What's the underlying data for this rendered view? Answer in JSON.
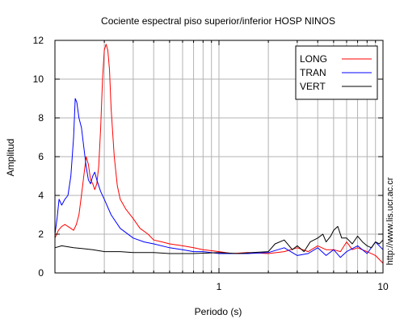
{
  "chart_data": {
    "type": "line",
    "title": "Cociente espectral piso superior/inferior  HOSP NINOS",
    "xlabel": "Periodo (s)",
    "ylabel": "Amplitud",
    "x_scale": "log",
    "xlim": [
      0.1,
      10
    ],
    "ylim": [
      0,
      12
    ],
    "x_ticks": [
      {
        "value": 1,
        "label": "1"
      },
      {
        "value": 10,
        "label": "10"
      }
    ],
    "y_ticks": [
      0,
      2,
      4,
      6,
      8,
      10,
      12
    ],
    "grid": true,
    "legend_position": "top-right",
    "series": [
      {
        "name": "LONG",
        "color": "#ff0000",
        "points": [
          [
            0.1,
            1.8
          ],
          [
            0.105,
            2.2
          ],
          [
            0.11,
            2.4
          ],
          [
            0.115,
            2.5
          ],
          [
            0.12,
            2.4
          ],
          [
            0.125,
            2.3
          ],
          [
            0.13,
            2.2
          ],
          [
            0.135,
            2.5
          ],
          [
            0.14,
            3.0
          ],
          [
            0.145,
            4.0
          ],
          [
            0.15,
            5.0
          ],
          [
            0.155,
            6.0
          ],
          [
            0.16,
            5.6
          ],
          [
            0.165,
            4.8
          ],
          [
            0.17,
            4.6
          ],
          [
            0.175,
            4.3
          ],
          [
            0.18,
            4.6
          ],
          [
            0.185,
            5.5
          ],
          [
            0.19,
            7.5
          ],
          [
            0.195,
            10.0
          ],
          [
            0.2,
            11.5
          ],
          [
            0.205,
            11.8
          ],
          [
            0.21,
            11.5
          ],
          [
            0.215,
            10.5
          ],
          [
            0.22,
            8.5
          ],
          [
            0.23,
            6.0
          ],
          [
            0.24,
            4.5
          ],
          [
            0.25,
            3.8
          ],
          [
            0.27,
            3.3
          ],
          [
            0.3,
            2.8
          ],
          [
            0.33,
            2.3
          ],
          [
            0.37,
            2.0
          ],
          [
            0.4,
            1.7
          ],
          [
            0.45,
            1.6
          ],
          [
            0.5,
            1.5
          ],
          [
            0.6,
            1.4
          ],
          [
            0.7,
            1.3
          ],
          [
            0.8,
            1.2
          ],
          [
            1.0,
            1.1
          ],
          [
            1.2,
            1.0
          ],
          [
            1.5,
            1.05
          ],
          [
            2.0,
            1.0
          ],
          [
            2.5,
            1.1
          ],
          [
            3.0,
            1.3
          ],
          [
            3.5,
            1.1
          ],
          [
            4.0,
            1.4
          ],
          [
            4.5,
            1.2
          ],
          [
            5.0,
            1.2
          ],
          [
            5.5,
            1.1
          ],
          [
            6.0,
            1.6
          ],
          [
            6.5,
            1.2
          ],
          [
            7.0,
            1.3
          ],
          [
            8.0,
            1.1
          ],
          [
            9.0,
            0.9
          ],
          [
            10.0,
            0.5
          ]
        ]
      },
      {
        "name": "TRAN",
        "color": "#0000ff",
        "points": [
          [
            0.1,
            2.0
          ],
          [
            0.103,
            2.8
          ],
          [
            0.106,
            3.8
          ],
          [
            0.11,
            3.5
          ],
          [
            0.115,
            3.8
          ],
          [
            0.12,
            4.0
          ],
          [
            0.125,
            5.0
          ],
          [
            0.13,
            7.0
          ],
          [
            0.133,
            9.0
          ],
          [
            0.136,
            8.8
          ],
          [
            0.14,
            8.0
          ],
          [
            0.145,
            7.5
          ],
          [
            0.15,
            6.5
          ],
          [
            0.155,
            5.5
          ],
          [
            0.16,
            4.8
          ],
          [
            0.165,
            4.6
          ],
          [
            0.17,
            5.0
          ],
          [
            0.175,
            5.2
          ],
          [
            0.18,
            4.8
          ],
          [
            0.19,
            4.2
          ],
          [
            0.2,
            3.8
          ],
          [
            0.22,
            3.0
          ],
          [
            0.25,
            2.3
          ],
          [
            0.3,
            1.8
          ],
          [
            0.35,
            1.6
          ],
          [
            0.4,
            1.5
          ],
          [
            0.5,
            1.3
          ],
          [
            0.6,
            1.2
          ],
          [
            0.7,
            1.1
          ],
          [
            0.8,
            1.1
          ],
          [
            1.0,
            1.0
          ],
          [
            1.2,
            1.0
          ],
          [
            1.5,
            1.0
          ],
          [
            2.0,
            1.05
          ],
          [
            2.5,
            1.3
          ],
          [
            3.0,
            0.9
          ],
          [
            3.5,
            1.0
          ],
          [
            4.0,
            1.3
          ],
          [
            4.5,
            0.9
          ],
          [
            5.0,
            1.2
          ],
          [
            5.5,
            0.8
          ],
          [
            6.0,
            1.1
          ],
          [
            7.0,
            1.4
          ],
          [
            8.0,
            1.0
          ],
          [
            9.0,
            1.6
          ],
          [
            10.0,
            1.2
          ]
        ]
      },
      {
        "name": "VERT",
        "color": "#000000",
        "points": [
          [
            0.1,
            1.3
          ],
          [
            0.11,
            1.4
          ],
          [
            0.12,
            1.35
          ],
          [
            0.13,
            1.3
          ],
          [
            0.15,
            1.25
          ],
          [
            0.17,
            1.2
          ],
          [
            0.2,
            1.1
          ],
          [
            0.25,
            1.1
          ],
          [
            0.3,
            1.05
          ],
          [
            0.4,
            1.05
          ],
          [
            0.5,
            1.0
          ],
          [
            0.7,
            1.0
          ],
          [
            1.0,
            1.05
          ],
          [
            1.3,
            1.0
          ],
          [
            1.6,
            1.05
          ],
          [
            2.0,
            1.1
          ],
          [
            2.2,
            1.5
          ],
          [
            2.5,
            1.7
          ],
          [
            2.8,
            1.2
          ],
          [
            3.0,
            1.4
          ],
          [
            3.3,
            1.1
          ],
          [
            3.6,
            1.6
          ],
          [
            4.0,
            1.8
          ],
          [
            4.3,
            2.0
          ],
          [
            4.5,
            1.6
          ],
          [
            4.8,
            1.9
          ],
          [
            5.0,
            2.2
          ],
          [
            5.3,
            2.4
          ],
          [
            5.6,
            1.8
          ],
          [
            6.0,
            1.8
          ],
          [
            6.5,
            1.5
          ],
          [
            7.0,
            1.9
          ],
          [
            7.5,
            1.6
          ],
          [
            8.0,
            1.4
          ],
          [
            8.5,
            1.3
          ],
          [
            9.0,
            1.6
          ],
          [
            9.5,
            1.5
          ],
          [
            10.0,
            1.7
          ]
        ]
      }
    ],
    "side_text": "http://www.lis.ucr.ac.cr"
  }
}
